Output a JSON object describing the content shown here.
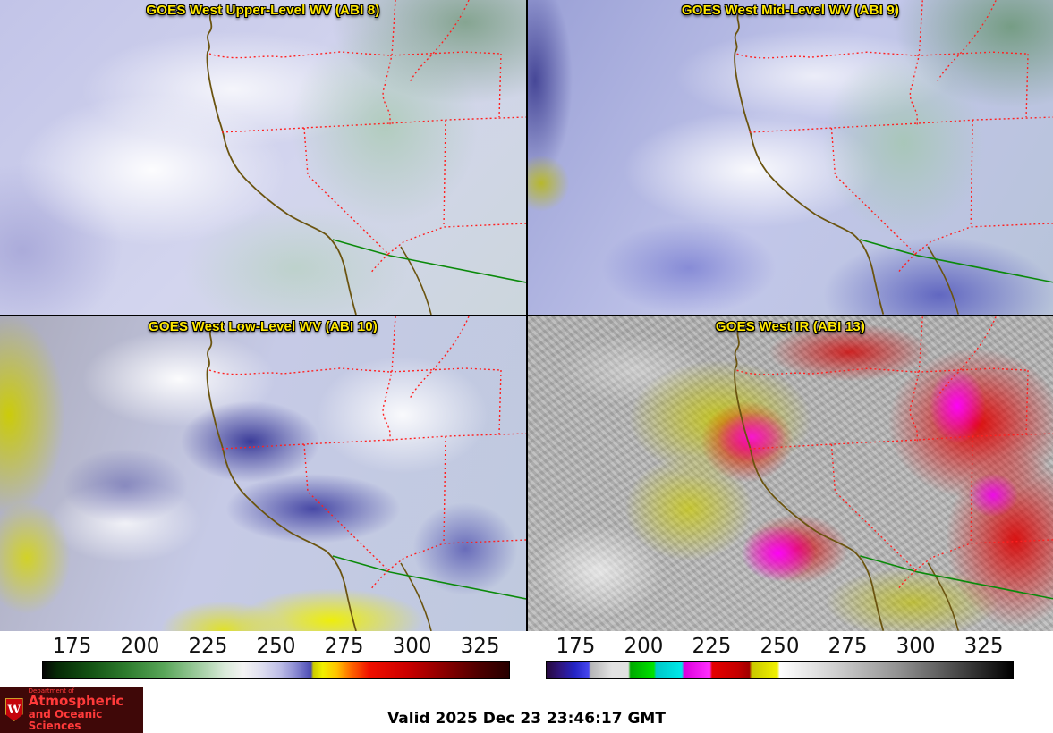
{
  "panels": [
    {
      "title": "GOES West Upper-Level WV (ABI 8)"
    },
    {
      "title": "GOES West Mid-Level WV (ABI 9)"
    },
    {
      "title": "GOES West Low-Level WV (ABI 10)"
    },
    {
      "title": "GOES West IR (ABI 13)"
    }
  ],
  "colorbars": [
    {
      "name": "wv-enhancement-colorbar",
      "ticks": [
        175,
        200,
        225,
        250,
        275,
        300,
        325
      ],
      "range": [
        164,
        336
      ],
      "stops": [
        [
          0,
          "#050505"
        ],
        [
          3,
          "#062906"
        ],
        [
          10,
          "#135213"
        ],
        [
          18,
          "#2e7d2e"
        ],
        [
          26,
          "#59a659"
        ],
        [
          33,
          "#9ccb9c"
        ],
        [
          39,
          "#d9ead9"
        ],
        [
          43,
          "#f3f3f3"
        ],
        [
          47,
          "#dedeef"
        ],
        [
          51,
          "#bcbce6"
        ],
        [
          54,
          "#8f8fd4"
        ],
        [
          56.5,
          "#5e5ebe"
        ],
        [
          57.5,
          "#4a4ab0"
        ],
        [
          58,
          "#c9c900"
        ],
        [
          60,
          "#f0f000"
        ],
        [
          63,
          "#ffc400"
        ],
        [
          66,
          "#ff6a00"
        ],
        [
          70,
          "#f01000"
        ],
        [
          78,
          "#cc0000"
        ],
        [
          86,
          "#8b0000"
        ],
        [
          94,
          "#4a0000"
        ],
        [
          100,
          "#260000"
        ]
      ]
    },
    {
      "name": "ir-enhancement-colorbar",
      "ticks": [
        175,
        200,
        225,
        250,
        275,
        300,
        325
      ],
      "range": [
        164,
        336
      ],
      "stops": [
        [
          0,
          "#26083d"
        ],
        [
          3,
          "#2f1680"
        ],
        [
          6,
          "#2424c4"
        ],
        [
          9,
          "#4646ee"
        ],
        [
          9.5,
          "#b6b6b6"
        ],
        [
          14,
          "#e2e2e2"
        ],
        [
          17.5,
          "#e2e2e2"
        ],
        [
          18,
          "#00a800"
        ],
        [
          23,
          "#00e400"
        ],
        [
          23.5,
          "#00c8c8"
        ],
        [
          29,
          "#00eaea"
        ],
        [
          29.5,
          "#dc00dc"
        ],
        [
          35,
          "#ff30ff"
        ],
        [
          35.5,
          "#e60000"
        ],
        [
          41,
          "#c40000"
        ],
        [
          43.5,
          "#a00000"
        ],
        [
          44,
          "#c8c800"
        ],
        [
          49.5,
          "#f2f200"
        ],
        [
          50,
          "#ffffff"
        ],
        [
          62,
          "#cfcfcf"
        ],
        [
          76,
          "#8f8f8f"
        ],
        [
          90,
          "#3d3d3d"
        ],
        [
          100,
          "#000000"
        ]
      ]
    }
  ],
  "logo": {
    "line1": "Department of",
    "line2": "Atmospheric",
    "line3": "and Oceanic Sciences",
    "crest_letter": "W"
  },
  "footer": {
    "valid_time": "Valid 2025 Dec 23 23:46:17 GMT"
  },
  "colors": {
    "title_text": "#ffe800",
    "state_border": "#ff2020",
    "coastline": "#6b5410",
    "international_border": "#0b8a0b",
    "logo_bg": "#3f0808",
    "logo_text": "#ff3a3a"
  }
}
